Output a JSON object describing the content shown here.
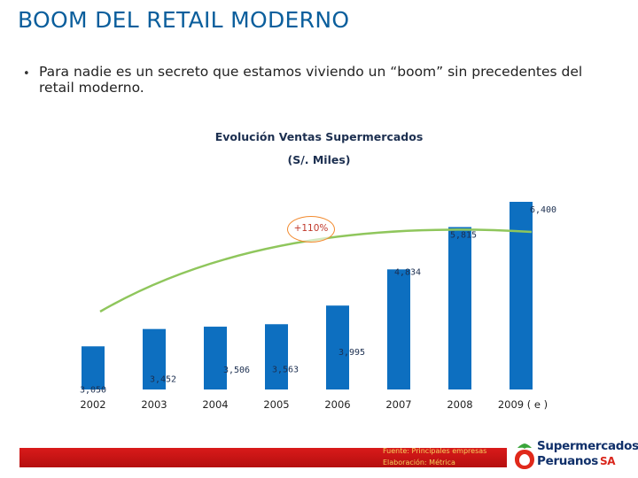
{
  "slide": {
    "title": "BOOM DEL RETAIL MODERNO",
    "bullet": "Para nadie es un secreto que estamos viviendo un “boom” sin precedentes del retail moderno.",
    "growth_badge": "+110%"
  },
  "chart_data": {
    "type": "bar",
    "title": "Evolución Ventas Supermercados",
    "subtitle": "(S/. Miles)",
    "categories": [
      "2002",
      "2003",
      "2004",
      "2005",
      "2006",
      "2007",
      "2008",
      "2009 ( e )"
    ],
    "values": [
      3050,
      3452,
      3506,
      3563,
      3995,
      4834,
      5815,
      6400
    ],
    "value_labels": [
      "3,050",
      "3,452",
      "3,506",
      "3,563",
      "3,995",
      "4,834",
      "5,815",
      "6,400"
    ],
    "bar_color": "#0d6fc0",
    "trendline_color": "#8fc65c",
    "grid": false,
    "legend": "none"
  },
  "footer": {
    "source": "Fuente: Principales empresas",
    "prepared_by": "Elaboración: Métrica",
    "bar_color": "#d91a1a"
  },
  "logo": {
    "line1": "Supermercados",
    "line2": "Peruanos",
    "suffix": "SA",
    "icon": "tomato-logo-icon",
    "leaf_color": "#3aa53a",
    "fruit_color": "#e0291b"
  }
}
